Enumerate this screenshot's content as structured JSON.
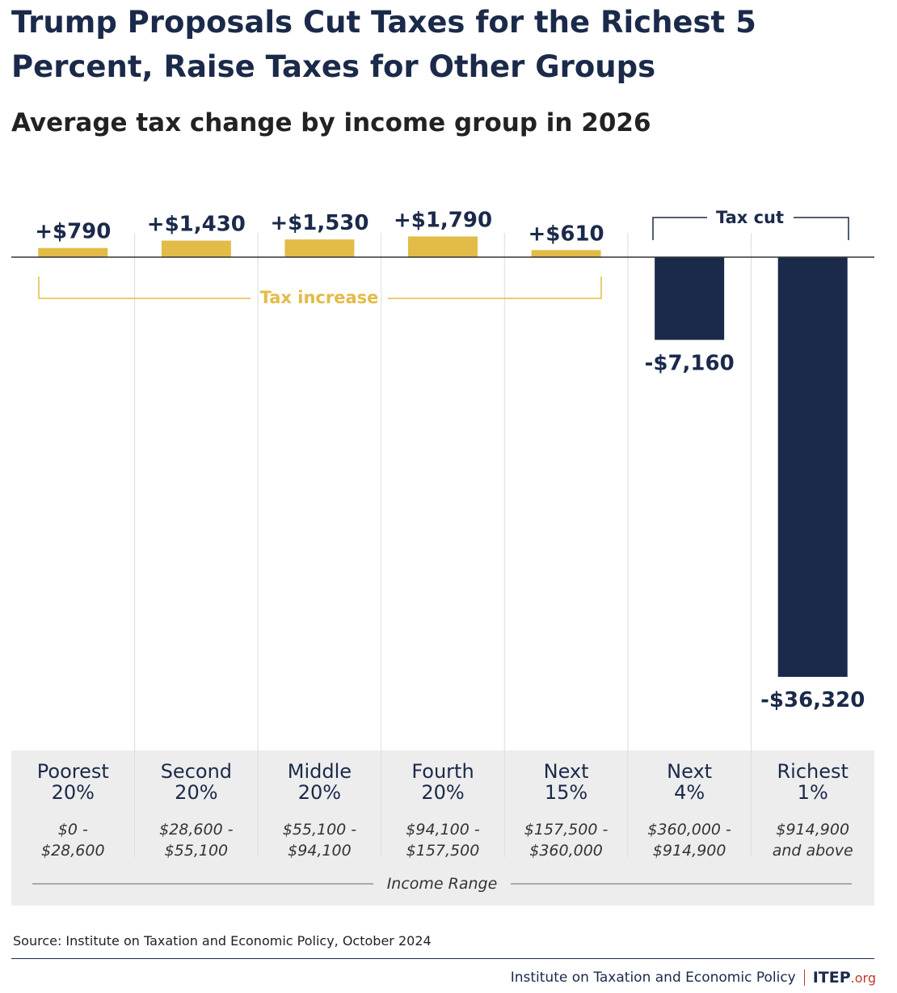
{
  "title": "Trump Proposals Cut Taxes for the Richest 5 Percent, Raise Taxes for Other Groups",
  "subtitle": "Average tax change by income group in 2026",
  "chart_data": {
    "type": "bar",
    "categories": [
      "Poorest 20%",
      "Second 20%",
      "Middle 20%",
      "Fourth 20%",
      "Next 15%",
      "Next 4%",
      "Richest 1%"
    ],
    "category_lines": [
      [
        "Poorest",
        "20%"
      ],
      [
        "Second",
        "20%"
      ],
      [
        "Middle",
        "20%"
      ],
      [
        "Fourth",
        "20%"
      ],
      [
        "Next",
        "15%"
      ],
      [
        "Next",
        "4%"
      ],
      [
        "Richest",
        "1%"
      ]
    ],
    "income_ranges": [
      [
        "$0 -",
        "$28,600"
      ],
      [
        "$28,600 -",
        "$55,100"
      ],
      [
        "$55,100 -",
        "$94,100"
      ],
      [
        "$94,100 -",
        "$157,500"
      ],
      [
        "$157,500 -",
        "$360,000"
      ],
      [
        "$360,000 -",
        "$914,900"
      ],
      [
        "$914,900",
        "and above"
      ]
    ],
    "values": [
      790,
      1430,
      1530,
      1790,
      610,
      -7160,
      -36320
    ],
    "value_labels": [
      "+$790",
      "+$1,430",
      "+$1,530",
      "+$1,790",
      "+$610",
      "-$7,160",
      "-$36,320"
    ],
    "xlabel": "Income Range",
    "ylabel": "",
    "ylim": [
      -36320,
      1790
    ],
    "grid": false,
    "legend": "none",
    "annotations": {
      "increase_label": "Tax increase",
      "cut_label": "Tax cut"
    },
    "colors": {
      "increase": "#e3bb47",
      "cut": "#1b2a4a",
      "increase_text": "#e3bb47",
      "cut_text": "#1b2a4a"
    }
  },
  "source": "Source: Institute on Taxation and Economic Policy, October 2024",
  "footer": {
    "org_name": "Institute on Taxation and Economic Policy",
    "logo_main": "ITEP",
    "logo_suffix": ".org"
  }
}
